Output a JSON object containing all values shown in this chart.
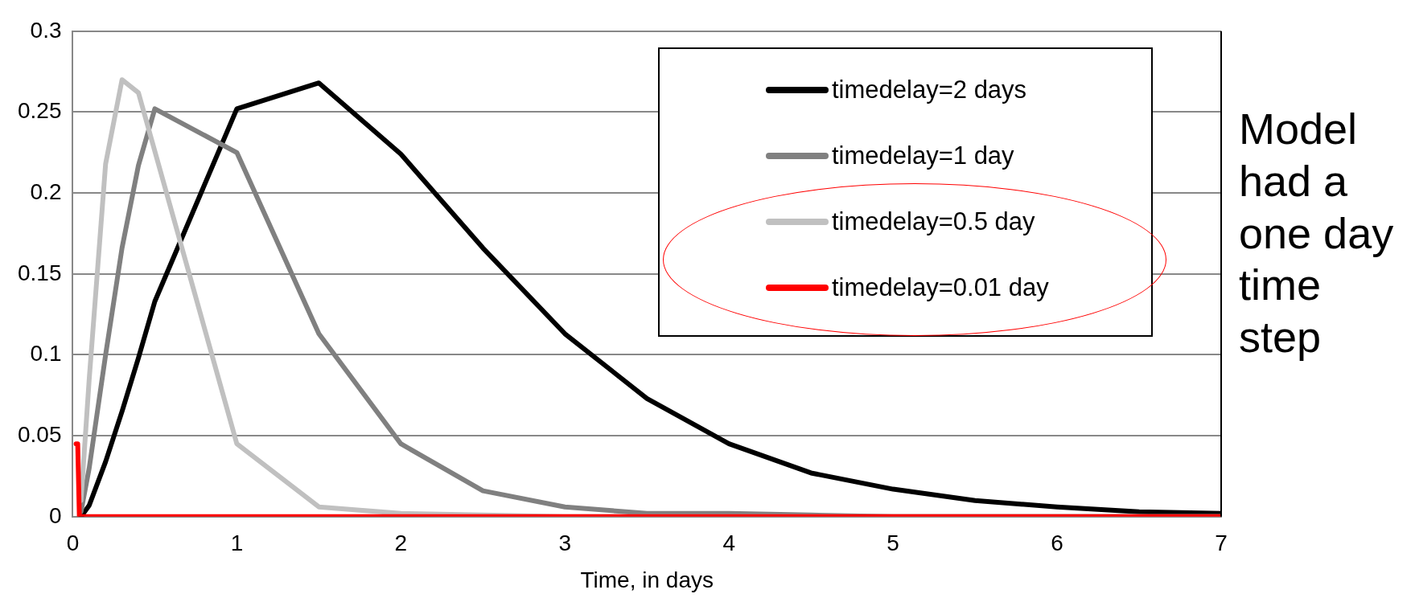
{
  "chart_data": {
    "type": "line",
    "xlabel": "Time, in days",
    "xlim": [
      0,
      7
    ],
    "xticks": [
      0,
      1,
      2,
      3,
      4,
      5,
      6,
      7
    ],
    "ylim": [
      0,
      0.3
    ],
    "yticks": [
      0,
      0.05,
      0.1,
      0.15,
      0.2,
      0.25,
      0.3
    ],
    "grid": "y",
    "legend": "top right",
    "marker": "none",
    "line_style": "solid",
    "annotations": [
      "Model had a one day time step"
    ],
    "series": [
      {
        "name": "timedelay=2 days",
        "color": "#000000",
        "x": [
          0.05,
          0.1,
          0.2,
          0.3,
          0.4,
          0.5,
          1,
          1.5,
          2,
          2.5,
          3,
          3.5,
          4,
          4.5,
          5,
          5.5,
          6,
          6.5,
          7
        ],
        "values": [
          0,
          0.007,
          0.034,
          0.065,
          0.098,
          0.133,
          0.252,
          0.268,
          0.224,
          0.166,
          0.113,
          0.073,
          0.045,
          0.027,
          0.017,
          0.01,
          0.006,
          0.003,
          0.002
        ]
      },
      {
        "name": "timedelay=1 day",
        "color": "#808080",
        "x": [
          0.05,
          0.1,
          0.2,
          0.3,
          0.4,
          0.5,
          1,
          1.5,
          2,
          2.5,
          3,
          3.5,
          4,
          4.5,
          5,
          5.5,
          6,
          6.5,
          7
        ],
        "values": [
          0.003,
          0.03,
          0.1,
          0.166,
          0.217,
          0.252,
          0.225,
          0.113,
          0.045,
          0.016,
          0.006,
          0.002,
          0.002,
          0.001,
          0,
          0,
          0,
          0,
          0
        ]
      },
      {
        "name": "timedelay=0.5 day",
        "color": "#c0c0c0",
        "x": [
          0.05,
          0.1,
          0.2,
          0.3,
          0.4,
          1,
          1.5,
          2,
          2.5,
          3,
          3.5,
          4,
          4.5,
          5,
          5.5,
          6,
          6.5,
          7
        ],
        "values": [
          0.01,
          0.085,
          0.218,
          0.27,
          0.262,
          0.045,
          0.006,
          0.002,
          0.001,
          0,
          0,
          0,
          0,
          0,
          0,
          0,
          0,
          0
        ]
      },
      {
        "name": "timedelay=0.01 day",
        "color": "#ff0000",
        "x": [
          0.02,
          0.03,
          0.04,
          7
        ],
        "values": [
          0.045,
          0.045,
          0,
          0
        ]
      }
    ]
  }
}
